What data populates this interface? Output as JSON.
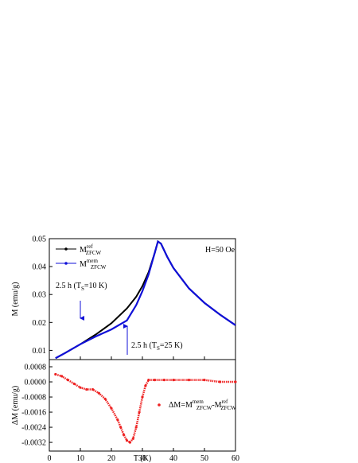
{
  "chart_data": [
    {
      "type": "line",
      "ylabel": "M (emu/g)",
      "annotations": [
        {
          "parts": [
            {
              "text": "H=50 Oe"
            }
          ]
        },
        {
          "parts": [
            {
              "text": "2.5 h (T"
            },
            {
              "text": "S",
              "shift": "sub"
            },
            {
              "text": "=10 K)"
            }
          ]
        },
        {
          "parts": [
            {
              "text": "2.5 h (T"
            },
            {
              "text": "S",
              "shift": "sub"
            },
            {
              "text": "=25 K)"
            }
          ]
        }
      ],
      "x": [
        2,
        5,
        10,
        15,
        20,
        25,
        28,
        30,
        32,
        34,
        35,
        36,
        38,
        40,
        45,
        50,
        55,
        60
      ],
      "series": [
        {
          "name_parts": [
            {
              "text": "M"
            },
            {
              "text": "ref",
              "shift": "sup"
            },
            {
              "text": "ZFCW",
              "shift": "sub"
            }
          ],
          "color": "#000000",
          "values": [
            0.0072,
            0.009,
            0.0122,
            0.0157,
            0.0197,
            0.025,
            0.0292,
            0.033,
            0.038,
            0.045,
            0.049,
            0.0482,
            0.0435,
            0.0395,
            0.0322,
            0.027,
            0.0228,
            0.019
          ]
        },
        {
          "name_parts": [
            {
              "text": "M"
            },
            {
              "text": "mem",
              "shift": "sup"
            },
            {
              "text": "ZFCW",
              "shift": "sub"
            }
          ],
          "color": "#1010d8",
          "values": [
            0.0072,
            0.009,
            0.0122,
            0.015,
            0.0175,
            0.0207,
            0.0262,
            0.0312,
            0.0372,
            0.045,
            0.049,
            0.0482,
            0.0435,
            0.0395,
            0.0322,
            0.027,
            0.0228,
            0.019
          ]
        }
      ],
      "ylim": [
        0.0067,
        0.05
      ],
      "yticks": [
        0.01,
        0.02,
        0.03,
        0.04,
        0.05
      ]
    },
    {
      "type": "scatter",
      "xlabel": "T (K)",
      "ylabel": "ΔM (emu/g)",
      "x": [
        2,
        4,
        6,
        8,
        10,
        12,
        14,
        16,
        18,
        20,
        22,
        23,
        24,
        25,
        26,
        27,
        28,
        29,
        30,
        31,
        32,
        34,
        37,
        40,
        45,
        50,
        55,
        60
      ],
      "series": [
        {
          "name_parts": [
            {
              "text": "ΔM=M"
            },
            {
              "text": "mem",
              "shift": "sup"
            },
            {
              "text": "ZFCW",
              "shift": "sub"
            },
            {
              "text": "-M"
            },
            {
              "text": "ref",
              "shift": "sup"
            },
            {
              "text": "ZFCW",
              "shift": "sub"
            }
          ],
          "color": "#ee2222",
          "values": [
            0.0004,
            0.0003,
            0.0001,
            -0.0001,
            -0.0003,
            -0.0004,
            -0.0004,
            -0.0006,
            -0.0009,
            -0.0014,
            -0.002,
            -0.0024,
            -0.0028,
            -0.0031,
            -0.0032,
            -0.003,
            -0.0024,
            -0.0016,
            -0.0008,
            -0.0002,
            0.0001,
            0.0001,
            0.0001,
            0.0001,
            0.0001,
            0.0001,
            0.0,
            0.0
          ]
        }
      ],
      "xlim": [
        0,
        60
      ],
      "xticks": [
        0,
        10,
        20,
        30,
        40,
        50,
        60
      ],
      "ylim": [
        -0.00366,
        0.00118
      ],
      "yticks": [
        {
          "value": 0.0008,
          "label": "0.0008"
        },
        {
          "value": 0,
          "label": "0.0000"
        },
        {
          "value": -0.0008,
          "label": "-0.0008"
        },
        {
          "value": -0.0016,
          "label": "-0.0016"
        },
        {
          "value": -0.0024,
          "label": "-0.0024"
        },
        {
          "value": -0.0032,
          "label": "-0.0032"
        }
      ]
    }
  ]
}
